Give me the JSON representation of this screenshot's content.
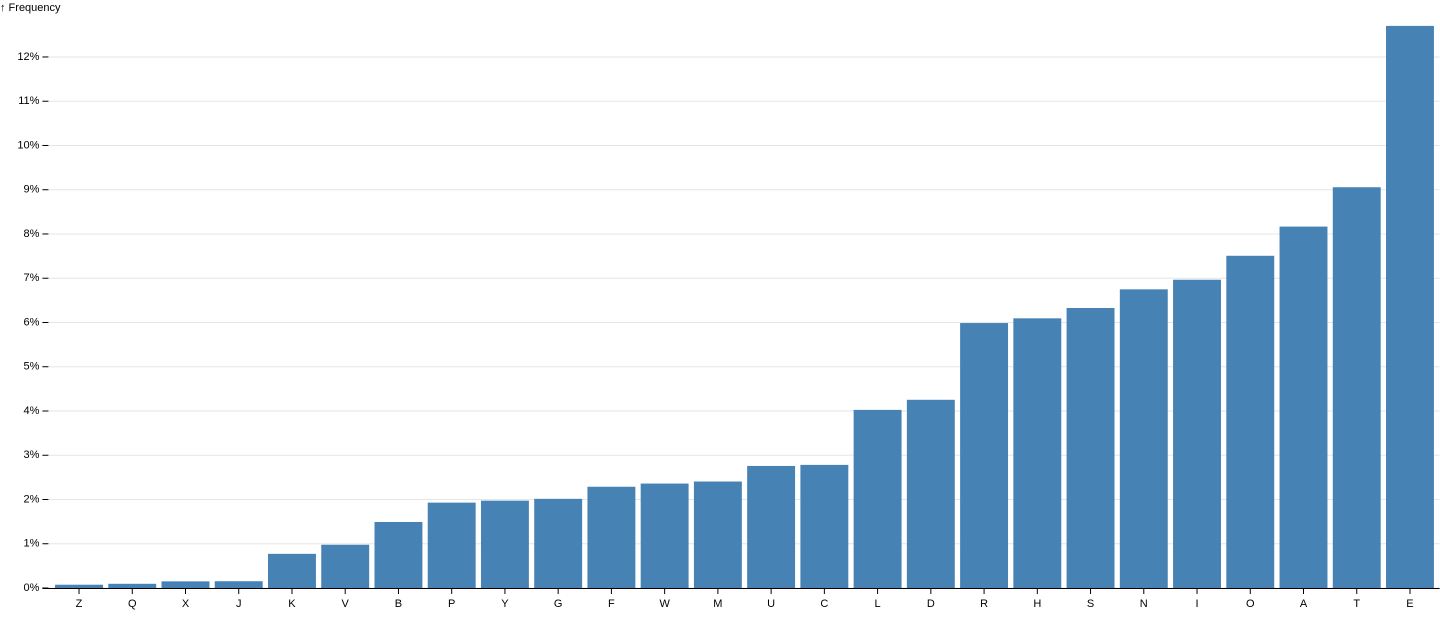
{
  "chart_data": {
    "type": "bar",
    "y_label": "↑ Frequency",
    "categories": [
      "Z",
      "Q",
      "X",
      "J",
      "K",
      "V",
      "B",
      "P",
      "Y",
      "G",
      "F",
      "W",
      "M",
      "U",
      "C",
      "L",
      "D",
      "R",
      "H",
      "S",
      "N",
      "I",
      "O",
      "A",
      "T",
      "E"
    ],
    "values": [
      0.074,
      0.095,
      0.15,
      0.153,
      0.772,
      0.978,
      1.492,
      1.929,
      1.974,
      2.015,
      2.288,
      2.36,
      2.406,
      2.758,
      2.782,
      4.025,
      4.253,
      5.987,
      6.094,
      6.327,
      6.749,
      6.966,
      7.507,
      8.167,
      9.056,
      12.702
    ],
    "color": "#4682b4",
    "ylim": [
      0,
      12.702
    ],
    "yticks": [
      {
        "value": 0,
        "label": "0%"
      },
      {
        "value": 1,
        "label": "1%"
      },
      {
        "value": 2,
        "label": "2%"
      },
      {
        "value": 3,
        "label": "3%"
      },
      {
        "value": 4,
        "label": "4%"
      },
      {
        "value": 5,
        "label": "5%"
      },
      {
        "value": 6,
        "label": "6%"
      },
      {
        "value": 7,
        "label": "7%"
      },
      {
        "value": 8,
        "label": "8%"
      },
      {
        "value": 9,
        "label": "9%"
      },
      {
        "value": 10,
        "label": "10%"
      },
      {
        "value": 11,
        "label": "11%"
      },
      {
        "value": 12,
        "label": "12%"
      }
    ],
    "grid": true
  }
}
